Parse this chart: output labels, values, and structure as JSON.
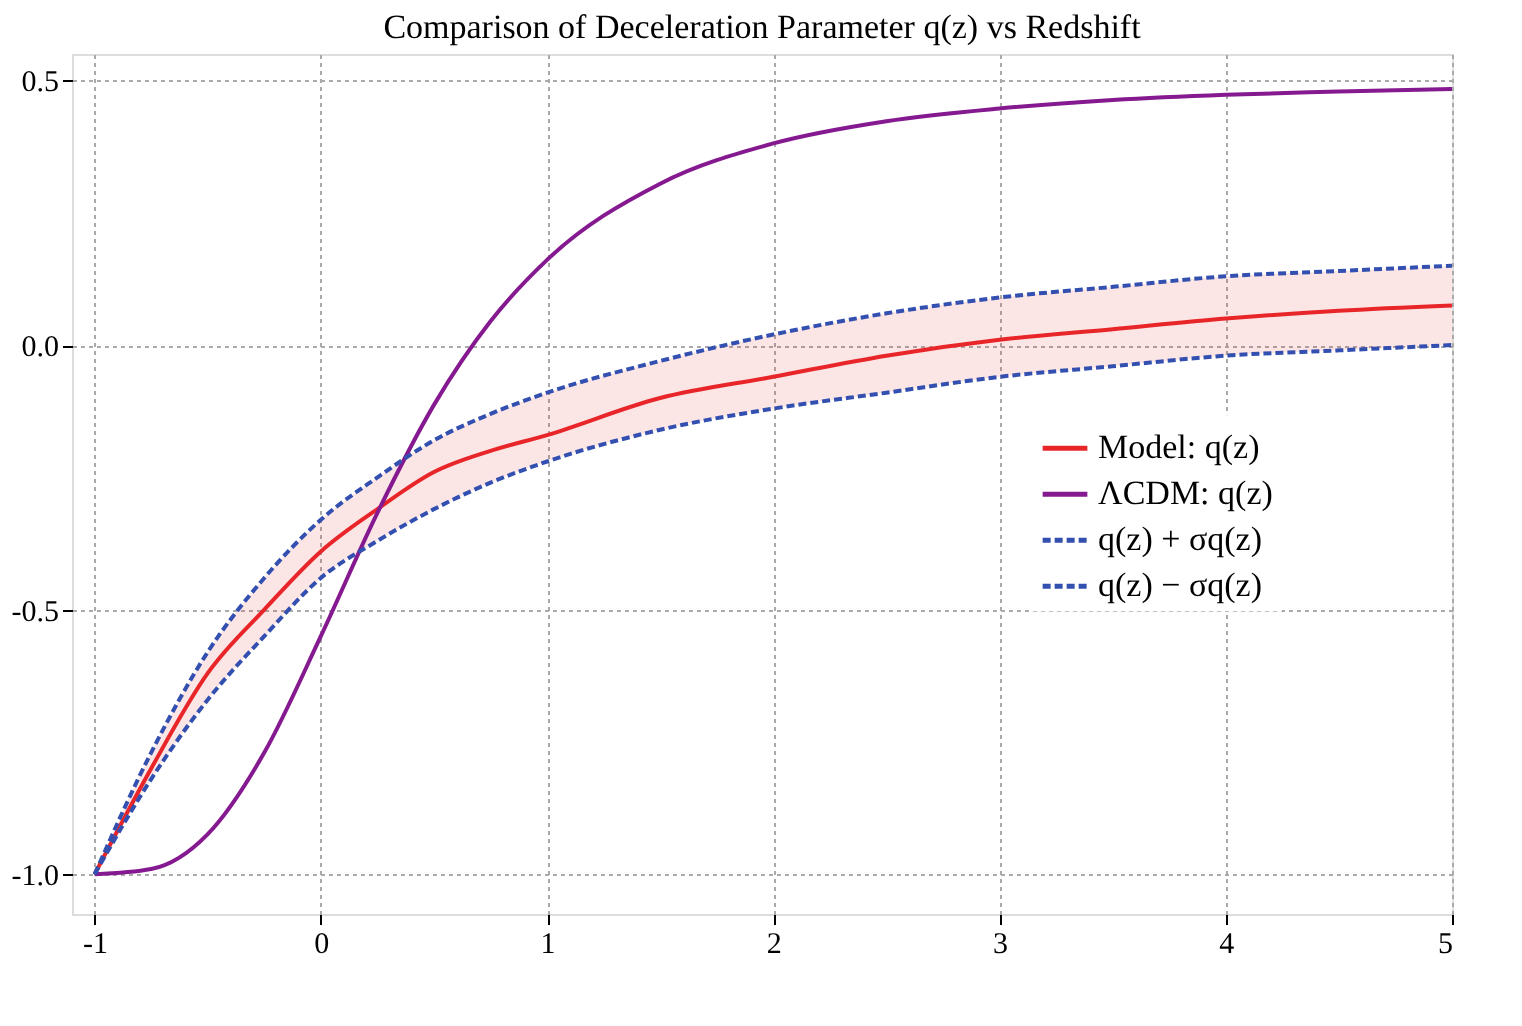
{
  "chart_data": {
    "type": "line",
    "title": "Comparison of Deceleration Parameter q(z) vs Redshift",
    "x": [
      -1,
      -0.75,
      -0.5,
      -0.25,
      0,
      0.25,
      0.5,
      0.75,
      1,
      1.5,
      2,
      2.5,
      3,
      3.5,
      4,
      4.5,
      5
    ],
    "series": [
      {
        "name": "Model: q(z)",
        "color": "#e8262a",
        "values": [
          -1,
          -0.8,
          -0.62,
          -0.5,
          -0.39,
          -0.31,
          -0.24,
          -0.2,
          -0.17,
          -0.1,
          -0.06,
          -0.02,
          0.01,
          0.03,
          0.05,
          0.065,
          0.075
        ],
        "lower": [
          -1,
          -0.82,
          -0.67,
          -0.55,
          -0.44,
          -0.37,
          -0.31,
          -0.26,
          -0.22,
          -0.16,
          -0.12,
          -0.09,
          -0.06,
          -0.04,
          -0.02,
          -0.01,
          0.0
        ],
        "upper": [
          -1,
          -0.77,
          -0.58,
          -0.44,
          -0.33,
          -0.25,
          -0.18,
          -0.13,
          -0.09,
          -0.03,
          0.02,
          0.06,
          0.09,
          0.11,
          0.13,
          0.14,
          0.15
        ]
      },
      {
        "name": "ΛCDM: q(z)",
        "color": "#85198f",
        "values": [
          -1,
          -0.99,
          -0.924,
          -0.77,
          -0.55,
          -0.317,
          -0.113,
          0.045,
          0.161,
          0.305,
          0.381,
          0.423,
          0.447,
          0.463,
          0.473,
          0.479,
          0.484
        ]
      },
      {
        "name": "q(z) + σq(z)",
        "color": "#3350b0",
        "line_style": "dashed",
        "values": [
          -1,
          -0.77,
          -0.58,
          -0.44,
          -0.33,
          -0.25,
          -0.18,
          -0.13,
          -0.09,
          -0.03,
          0.02,
          0.06,
          0.09,
          0.11,
          0.13,
          0.14,
          0.15
        ]
      },
      {
        "name": "q(z) − σq(z)",
        "color": "#3350b0",
        "line_style": "dashed",
        "values": [
          -1,
          -0.82,
          -0.67,
          -0.55,
          -0.44,
          -0.37,
          -0.31,
          -0.26,
          -0.22,
          -0.16,
          -0.12,
          -0.09,
          -0.06,
          -0.04,
          -0.02,
          -0.01,
          0.0
        ]
      }
    ],
    "xlim": [
      -1.1,
      5
    ],
    "xticks": [
      -1,
      0,
      1,
      2,
      3,
      4,
      5
    ],
    "ylim": [
      -1.075,
      0.55
    ],
    "yticks": [
      {
        "value": -1,
        "label": "-1.0"
      },
      {
        "value": -0.5,
        "label": "-0.5"
      },
      {
        "value": 0,
        "label": "0.0"
      },
      {
        "value": 0.5,
        "label": "0.5"
      }
    ],
    "grid": true,
    "legend": "right"
  }
}
